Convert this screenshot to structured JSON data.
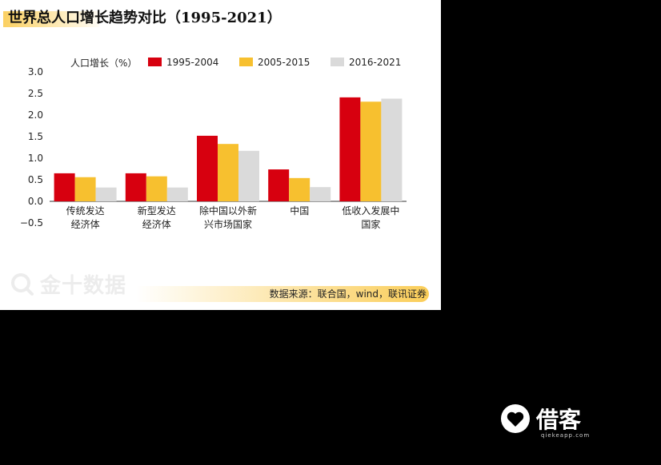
{
  "title": "世界总人口增长趋势对比（1995-2021）",
  "watermark_text": "金十数据",
  "source_text": "数据来源：联合国，wind，联讯证券",
  "brand_text": "借客",
  "brand_sub": "qiekeapp.com",
  "chart_data": {
    "type": "bar",
    "ylabel": "人口增长（%）",
    "ylim": [
      -0.5,
      3.0
    ],
    "yticks": [
      "3.0",
      "2.5",
      "2.0",
      "1.5",
      "1.0",
      "0.5",
      "0.0",
      "−0.5"
    ],
    "ytick_values": [
      3.0,
      2.5,
      2.0,
      1.5,
      1.0,
      0.5,
      0.0,
      -0.5
    ],
    "categories": [
      [
        "传统发达",
        "经济体"
      ],
      [
        "新型发达",
        "经济体"
      ],
      [
        "除中国以外新",
        "兴市场国家"
      ],
      [
        "中国"
      ],
      [
        "低收入发展中",
        "国家"
      ]
    ],
    "series": [
      {
        "name": "1995-2004",
        "color": "#d7000f",
        "values": [
          0.65,
          0.65,
          1.52,
          0.74,
          2.41
        ]
      },
      {
        "name": "2005-2015",
        "color": "#f7c02f",
        "values": [
          0.56,
          0.58,
          1.33,
          0.54,
          2.31
        ]
      },
      {
        "name": "2016-2021",
        "color": "#dadada",
        "values": [
          0.32,
          0.32,
          1.17,
          0.33,
          2.38
        ]
      }
    ],
    "legend_position": "top",
    "grid": false
  }
}
